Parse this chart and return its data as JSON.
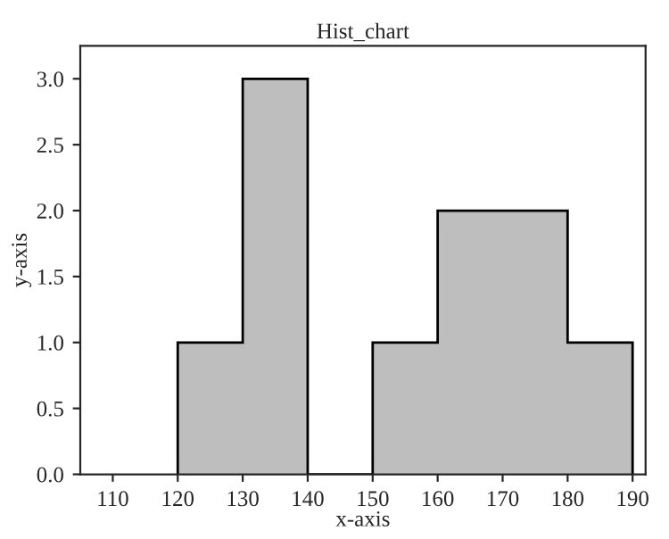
{
  "chart_data": {
    "type": "histogram",
    "title": "Hist_chart",
    "xlabel": "x-axis",
    "ylabel": "y-axis",
    "bins": [
      120,
      130,
      140,
      150,
      160,
      170,
      180,
      190
    ],
    "values": [
      1,
      3,
      0,
      1,
      2,
      2,
      1
    ],
    "color": "#bebebe",
    "xlim": [
      105,
      192
    ],
    "xticks": [
      110,
      120,
      130,
      140,
      150,
      160,
      170,
      180,
      190
    ],
    "ylim": [
      0,
      3.25
    ],
    "yticks": [
      {
        "value": 0,
        "label": "0.0"
      },
      {
        "value": 0.5,
        "label": "0.5"
      },
      {
        "value": 1,
        "label": "1.0"
      },
      {
        "value": 1.5,
        "label": "1.5"
      },
      {
        "value": 2,
        "label": "2.0"
      },
      {
        "value": 2.5,
        "label": "2.5"
      },
      {
        "value": 3,
        "label": "3.0"
      }
    ],
    "grid": false,
    "legend": false
  }
}
